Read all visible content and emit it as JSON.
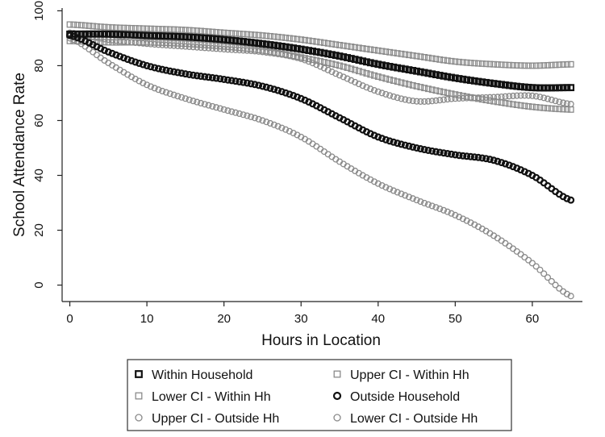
{
  "chart_data": {
    "type": "scatter",
    "xlabel": "Hours in Location",
    "ylabel": "School Attendance Rate",
    "xlim": [
      -1,
      66.5
    ],
    "ylim": [
      -6,
      101
    ],
    "x_ticks": [
      0,
      10,
      20,
      30,
      40,
      50,
      60
    ],
    "y_ticks": [
      0,
      20,
      40,
      60,
      80,
      100
    ],
    "legend_position": "bottom",
    "x_values": [
      0,
      5,
      10,
      15,
      20,
      25,
      30,
      35,
      40,
      45,
      50,
      55,
      60,
      65
    ],
    "series": [
      {
        "name": "Within Household",
        "marker": "square",
        "weight": "bold",
        "color": "#111111",
        "values": [
          91.5,
          91.5,
          91.0,
          90.5,
          89.5,
          88.0,
          86.0,
          83.5,
          80.5,
          78.0,
          75.5,
          73.5,
          72.0,
          72.0
        ]
      },
      {
        "name": "Upper CI - Within Hh",
        "marker": "square",
        "weight": "light",
        "color": "#8a8a8a",
        "values": [
          95.0,
          94.0,
          93.5,
          93.0,
          92.0,
          91.0,
          89.5,
          87.5,
          85.5,
          83.5,
          81.5,
          80.5,
          80.0,
          80.5
        ]
      },
      {
        "name": "Lower CI - Within Hh",
        "marker": "square",
        "weight": "light",
        "color": "#8a8a8a",
        "values": [
          89.0,
          88.5,
          88.5,
          88.0,
          87.0,
          85.5,
          83.0,
          80.0,
          76.0,
          72.5,
          69.5,
          67.0,
          65.0,
          64.0
        ]
      },
      {
        "name": "Outside Household",
        "marker": "circle",
        "weight": "bold",
        "color": "#111111",
        "values": [
          91.0,
          85.0,
          80.0,
          77.0,
          75.0,
          72.5,
          68.0,
          61.0,
          54.0,
          50.0,
          47.5,
          45.5,
          40.0,
          31.0
        ]
      },
      {
        "name": "Upper CI - Outside Hh",
        "marker": "circle",
        "weight": "light",
        "color": "#8a8a8a",
        "values": [
          92.0,
          89.5,
          88.0,
          87.0,
          86.0,
          85.0,
          82.5,
          76.5,
          70.5,
          67.0,
          68.0,
          68.5,
          69.0,
          66.0
        ]
      },
      {
        "name": "Lower CI - Outside Hh",
        "marker": "circle",
        "weight": "light",
        "color": "#8a8a8a",
        "values": [
          90.0,
          81.0,
          73.0,
          68.0,
          64.0,
          60.0,
          54.0,
          45.0,
          37.0,
          31.0,
          25.5,
          18.0,
          8.0,
          -4.0
        ]
      }
    ]
  }
}
